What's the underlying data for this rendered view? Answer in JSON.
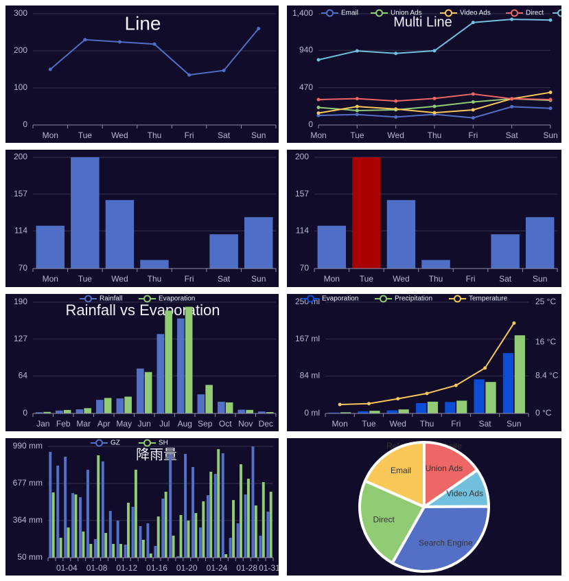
{
  "chart_data": [
    {
      "type": "line",
      "title": "Line",
      "categories": [
        "Mon",
        "Tue",
        "Wed",
        "Thu",
        "Fri",
        "Sat",
        "Sun"
      ],
      "values": [
        150,
        230,
        224,
        218,
        135,
        147,
        260
      ],
      "color": "#4f6fc6",
      "ylim": [
        0,
        300
      ],
      "yticks": [
        0,
        100,
        200,
        300
      ],
      "grid": true
    },
    {
      "type": "line",
      "title": "Multi Line",
      "categories": [
        "Mon",
        "Tue",
        "Wed",
        "Thu",
        "Fri",
        "Sat",
        "Sun"
      ],
      "series": [
        {
          "name": "Email",
          "color": "#5470c6",
          "values": [
            120,
            132,
            101,
            134,
            90,
            230,
            210
          ]
        },
        {
          "name": "Union Ads",
          "color": "#91cc75",
          "values": [
            220,
            182,
            191,
            234,
            290,
            330,
            310
          ]
        },
        {
          "name": "Video Ads",
          "color": "#fac858",
          "values": [
            150,
            232,
            201,
            154,
            190,
            330,
            410
          ]
        },
        {
          "name": "Direct",
          "color": "#ee6666",
          "values": [
            320,
            332,
            301,
            334,
            390,
            330,
            320
          ]
        },
        {
          "color": "#73c0de",
          "values": [
            820,
            932,
            901,
            934,
            1290,
            1330,
            1320
          ]
        }
      ],
      "ylim": [
        0,
        1400
      ],
      "yticks": [
        0,
        470,
        940,
        {
          "value": 1400,
          "label": "1,400"
        }
      ],
      "grid": true,
      "legend": "top"
    },
    {
      "type": "bar",
      "categories": [
        "Mon",
        "Tue",
        "Wed",
        "Thu",
        "Fri",
        "Sat",
        "Sun"
      ],
      "values": [
        120,
        200,
        150,
        80,
        70,
        110,
        130
      ],
      "color": "#4f6fc6",
      "ylim": [
        70,
        200
      ],
      "yticks": [
        70,
        114,
        157,
        200
      ],
      "grid": true
    },
    {
      "type": "bar",
      "categories": [
        "Mon",
        "Tue",
        "Wed",
        "Thu",
        "Fri",
        "Sat",
        "Sun"
      ],
      "values": [
        120,
        200,
        150,
        80,
        70,
        110,
        130
      ],
      "color": "#4f6fc6",
      "colors": [
        "#4f6fc6",
        "#a90000",
        "#4f6fc6",
        "#4f6fc6",
        "#4f6fc6",
        "#4f6fc6",
        "#4f6fc6"
      ],
      "ylim": [
        70,
        200
      ],
      "yticks": [
        70,
        114,
        157,
        200
      ],
      "grid": true
    },
    {
      "type": "bar",
      "title": "Rainfall vs Evaporation",
      "categories": [
        "Jan",
        "Feb",
        "Mar",
        "Apr",
        "May",
        "Jun",
        "Jul",
        "Aug",
        "Sep",
        "Oct",
        "Nov",
        "Dec"
      ],
      "series": [
        {
          "name": "Rainfall",
          "color": "#5470c6",
          "values": [
            2.0,
            4.9,
            7.0,
            23.2,
            25.6,
            76.7,
            135.6,
            162.2,
            32.6,
            20.0,
            6.4,
            3.3
          ]
        },
        {
          "name": "Evaporation",
          "color": "#91cc75",
          "values": [
            2.6,
            5.9,
            9.0,
            26.4,
            28.7,
            70.7,
            175.6,
            182.2,
            48.7,
            18.8,
            6.0,
            2.3
          ]
        }
      ],
      "ylim": [
        0,
        190
      ],
      "yticks": [
        0,
        64,
        127,
        190
      ],
      "grid": true,
      "legend": "top"
    },
    {
      "type": "bar",
      "categories": [
        "Mon",
        "Tue",
        "Wed",
        "Thu",
        "Fri",
        "Sat",
        "Sun"
      ],
      "series": [
        {
          "name": "Evaporation",
          "color": "#0b4ed6",
          "values": [
            2.0,
            4.9,
            7.0,
            23.2,
            25.6,
            76.7,
            135.6
          ]
        },
        {
          "name": "Precipitation",
          "color": "#91cc75",
          "values": [
            2.6,
            5.9,
            9.0,
            26.4,
            28.7,
            70.7,
            175.6
          ]
        },
        {
          "name": "Temperature",
          "color": "#fac858",
          "type": "line",
          "axis": "y2",
          "values": [
            2.0,
            2.2,
            3.3,
            4.5,
            6.3,
            10.2,
            20.3
          ]
        }
      ],
      "ylim": [
        0,
        250
      ],
      "yticks": [
        {
          "value": 0,
          "label": "0 ml"
        },
        {
          "value": 84,
          "label": "84 ml"
        },
        {
          "value": 167,
          "label": "167 ml"
        },
        {
          "value": 250,
          "label": "250 ml"
        }
      ],
      "y2lim": [
        0,
        25
      ],
      "y2ticks": [
        {
          "value": 0,
          "label": "0 °C"
        },
        {
          "value": 8.4,
          "label": "8.4 °C"
        },
        {
          "value": 16,
          "label": "16 °C"
        },
        {
          "value": 25,
          "label": "25 °C"
        }
      ],
      "grid": true,
      "legend": "top"
    },
    {
      "type": "bar",
      "title": "降雨量",
      "categories": [
        null,
        null,
        "01-04",
        null,
        null,
        null,
        "01-08",
        null,
        null,
        null,
        "01-12",
        null,
        null,
        null,
        "01-16",
        null,
        null,
        null,
        "01-20",
        null,
        null,
        null,
        "01-24",
        null,
        null,
        null,
        "01-28",
        null,
        null,
        "01-31"
      ],
      "series": [
        {
          "name": "GZ",
          "color": "#5470c6",
          "values": [
            944,
            828,
            903,
            596,
            561,
            793,
            207,
            863,
            445,
            363,
            160,
            480,
            317,
            340,
            149,
            549,
            926,
            62,
            926,
            816,
            305,
            578,
            758,
            932,
            218,
            340,
            584,
            990,
            236,
            439
          ]
        },
        {
          "name": "SH",
          "color": "#91cc75",
          "values": [
            601,
            218,
            305,
            584,
            271,
            166,
            915,
            259,
            166,
            166,
            514,
            793,
            201,
            85,
            398,
            607,
            236,
            410,
            363,
            427,
            526,
            776,
            967,
            79,
            537,
            839,
            717,
            491,
            688,
            607
          ]
        }
      ],
      "ylim": [
        50,
        990
      ],
      "yticks": [
        {
          "value": 50,
          "label": "50 mm"
        },
        {
          "value": 364,
          "label": "364 mm"
        },
        {
          "value": 677,
          "label": "677 mm"
        },
        {
          "value": 990,
          "label": "990 mm"
        }
      ],
      "grid": true,
      "legend": "top"
    },
    {
      "type": "pie",
      "title": "Referer of a Website",
      "categories": [
        "Union Ads",
        "Video Ads",
        "Search Engine",
        "Direct",
        "Email"
      ],
      "values": [
        484,
        300,
        1048,
        735,
        580
      ],
      "colors": [
        "#ee6666",
        "#73c0de",
        "#5470c6",
        "#91cc75",
        "#fac858"
      ]
    }
  ]
}
